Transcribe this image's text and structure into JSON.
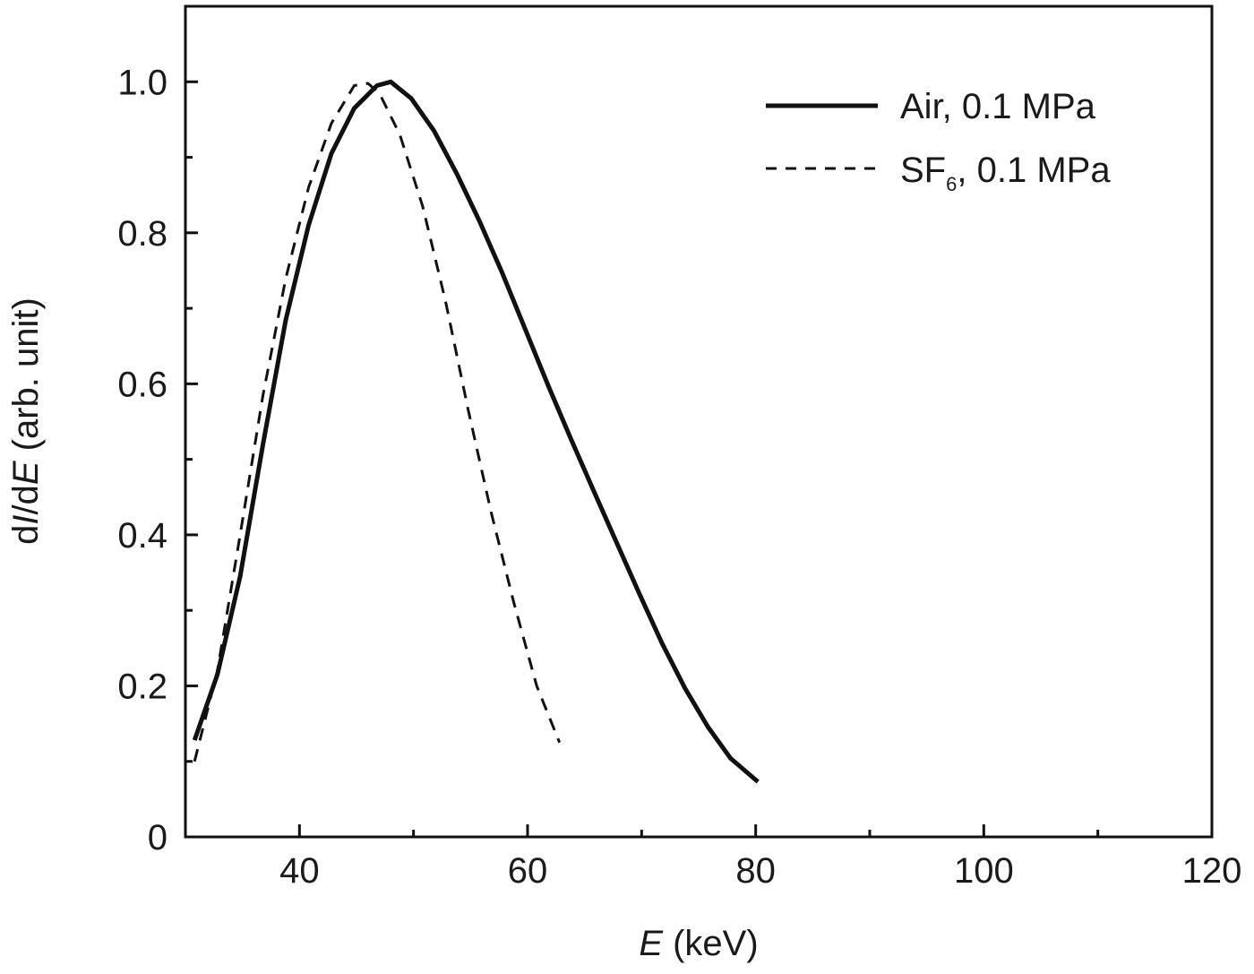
{
  "chart_data": {
    "type": "line",
    "xlabel": {
      "var": "E",
      "unit": " (keV)"
    },
    "ylabel": {
      "pre": "dI/dE",
      "var_i": "I",
      "var_e": "E",
      "unit": " (arb. unit)"
    },
    "xlim": [
      30,
      120
    ],
    "ylim": [
      0,
      1.1
    ],
    "x_ticks": [
      40,
      60,
      80,
      100,
      120
    ],
    "x_minor_ticks": [
      30,
      50,
      70,
      90,
      110
    ],
    "y_ticks": [
      {
        "value": 0,
        "label": "0"
      },
      {
        "value": 0.2,
        "label": "0.2"
      },
      {
        "value": 0.4,
        "label": "0.4"
      },
      {
        "value": 0.6,
        "label": "0.6"
      },
      {
        "value": 0.8,
        "label": "0.8"
      },
      {
        "value": 1.0,
        "label": "1.0"
      }
    ],
    "y_minor_ticks": [
      0.1,
      0.3,
      0.5,
      0.7,
      0.9
    ],
    "grid": false,
    "legend_position": "top-right",
    "series": [
      {
        "name": "Air, 0.1 MPa",
        "name_main": "Air, 0.1 MPa",
        "style": "solid",
        "color": "#111111",
        "x": [
          30.8,
          32.8,
          34.8,
          36.8,
          38.8,
          40.8,
          42.8,
          44.8,
          46.8,
          48.0,
          49.8,
          51.8,
          53.8,
          55.8,
          57.8,
          59.8,
          61.8,
          63.8,
          65.8,
          67.8,
          69.8,
          71.8,
          73.8,
          75.8,
          77.8,
          80.2
        ],
        "y": [
          0.128,
          0.215,
          0.345,
          0.52,
          0.685,
          0.81,
          0.905,
          0.965,
          0.995,
          1.0,
          0.978,
          0.935,
          0.878,
          0.815,
          0.746,
          0.672,
          0.598,
          0.527,
          0.458,
          0.39,
          0.322,
          0.256,
          0.197,
          0.146,
          0.104,
          0.073
        ]
      },
      {
        "name": "SF6, 0.1 MPa",
        "name_main": "SF",
        "name_sub": "6",
        "name_rest": ", 0.1 MPa",
        "style": "dashed",
        "color": "#111111",
        "x": [
          30.8,
          32.8,
          34.8,
          36.8,
          38.8,
          40.8,
          42.8,
          44.8,
          46.0,
          47.0,
          48.8,
          50.8,
          52.8,
          54.8,
          56.8,
          58.8,
          60.8,
          62.8
        ],
        "y": [
          0.1,
          0.22,
          0.4,
          0.585,
          0.74,
          0.86,
          0.945,
          0.995,
          0.998,
          0.985,
          0.93,
          0.835,
          0.71,
          0.565,
          0.43,
          0.31,
          0.2,
          0.125
        ]
      }
    ]
  }
}
